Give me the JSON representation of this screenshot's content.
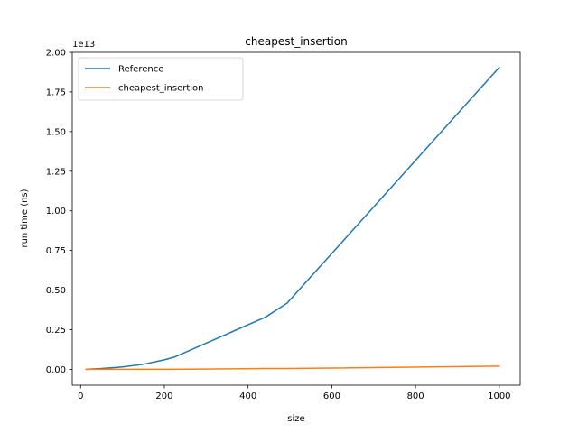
{
  "chart_data": {
    "type": "line",
    "title": "cheapest_insertion",
    "xlabel": "size",
    "ylabel": "run time (ns)",
    "y_offset_label": "1e13",
    "xlim": [
      -20,
      1050
    ],
    "ylim": [
      -1000000000000.0,
      20000000000000.0
    ],
    "x_ticks": [
      0,
      200,
      400,
      600,
      800,
      1000
    ],
    "x_tick_labels": [
      "0",
      "200",
      "400",
      "600",
      "800",
      "1000"
    ],
    "y_ticks": [
      0,
      2500000000000.0,
      5000000000000.0,
      7500000000000.0,
      10000000000000.0,
      12500000000000.0,
      15000000000000.0,
      17500000000000.0,
      20000000000000.0
    ],
    "y_tick_labels": [
      "0.00",
      "0.25",
      "0.50",
      "0.75",
      "1.00",
      "1.25",
      "1.50",
      "1.75",
      "2.00"
    ],
    "legend_position": "top-left",
    "grid": false,
    "series": [
      {
        "name": "Reference",
        "color": "#1f77b4",
        "x": [
          13,
          50,
          100,
          150,
          200,
          225,
          442,
          493,
          1000
        ],
        "y": [
          0,
          50000000000.0,
          150000000000.0,
          320000000000.0,
          600000000000.0,
          780000000000.0,
          3300000000000.0,
          4170000000000.0,
          19050000000000.0
        ]
      },
      {
        "name": "cheapest_insertion",
        "color": "#ff7f0e",
        "x": [
          13,
          50,
          100,
          150,
          200,
          225,
          442,
          493,
          1000
        ],
        "y": [
          0,
          0,
          0,
          0,
          0,
          0,
          50000000000.0,
          50000000000.0,
          200000000000.0
        ]
      }
    ]
  }
}
